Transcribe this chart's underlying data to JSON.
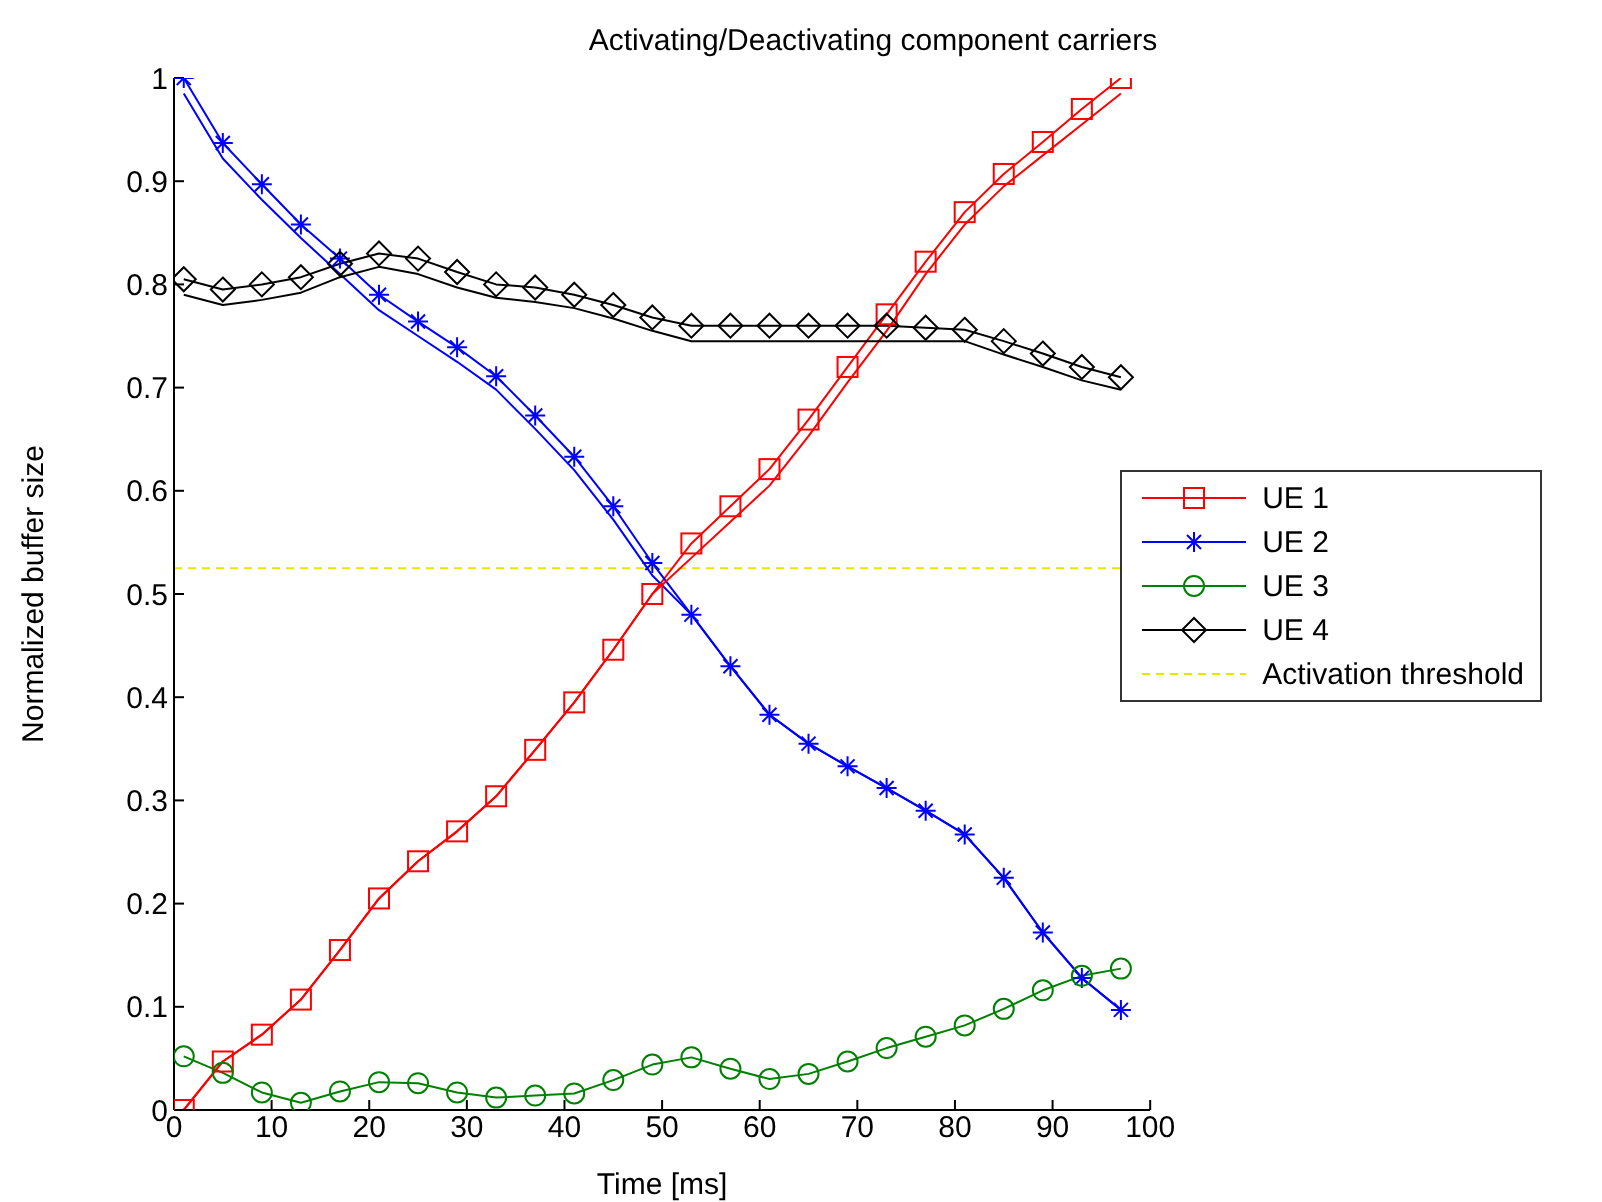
{
  "chart_data": {
    "type": "line",
    "title": "Activating/Deactivating component carriers",
    "xlabel": "Time [ms]",
    "ylabel": "Normalized buffer size",
    "x": [
      1,
      5,
      9,
      13,
      17,
      21,
      25,
      29,
      33,
      37,
      41,
      45,
      49,
      53,
      57,
      61,
      65,
      69,
      73,
      77,
      81,
      85,
      89,
      93,
      97
    ],
    "xlim": [
      0,
      100
    ],
    "xticks": [
      0,
      10,
      20,
      30,
      40,
      50,
      60,
      70,
      80,
      90,
      100
    ],
    "ylim": [
      0,
      1
    ],
    "yticks": [
      0,
      0.1,
      0.2,
      0.3,
      0.4,
      0.5,
      0.6,
      0.7,
      0.8,
      0.9,
      1
    ],
    "grid": false,
    "legend": "right",
    "line_style": "solid",
    "series": [
      {
        "name": "UE 1",
        "color": "#ff0000",
        "marker": "square",
        "values": [
          0,
          0.047,
          0.073,
          0.107,
          0.155,
          0.205,
          0.241,
          0.27,
          0.304,
          0.349,
          0.395,
          0.446,
          0.5,
          0.549,
          0.585,
          0.621,
          0.669,
          0.72,
          0.771,
          0.822,
          0.87,
          0.907,
          0.938,
          0.97,
          1.0
        ]
      },
      {
        "name": "UE 2",
        "color": "#0000ff",
        "marker": "cross",
        "values": [
          1.0,
          0.937,
          0.897,
          0.858,
          0.825,
          0.79,
          0.764,
          0.739,
          0.711,
          0.673,
          0.633,
          0.585,
          0.53,
          0.48,
          0.43,
          0.383,
          0.355,
          0.333,
          0.312,
          0.29,
          0.267,
          0.225,
          0.172,
          0.128,
          0.097
        ]
      },
      {
        "name": "UE 3",
        "color": "#008000",
        "marker": "circle",
        "values": [
          0.052,
          0.036,
          0.017,
          0.007,
          0.018,
          0.027,
          0.026,
          0.017,
          0.012,
          0.014,
          0.016,
          0.029,
          0.044,
          0.051,
          0.04,
          0.03,
          0.035,
          0.047,
          0.06,
          0.071,
          0.082,
          0.098,
          0.116,
          0.13,
          0.137
        ]
      },
      {
        "name": "UE 4",
        "color": "#000000",
        "marker": "diamond",
        "values": [
          0.805,
          0.795,
          0.8,
          0.807,
          0.82,
          0.83,
          0.825,
          0.812,
          0.8,
          0.797,
          0.79,
          0.78,
          0.768,
          0.76,
          0.76,
          0.76,
          0.76,
          0.76,
          0.76,
          0.758,
          0.756,
          0.745,
          0.733,
          0.72,
          0.71
        ]
      },
      {
        "color": "#ff0000",
        "marker": "none",
        "values": [
          0,
          0.047,
          0.073,
          0.107,
          0.155,
          0.205,
          0.241,
          0.27,
          0.304,
          0.349,
          0.395,
          0.446,
          0.5,
          0.535,
          0.57,
          0.605,
          0.653,
          0.705,
          0.755,
          0.81,
          0.858,
          0.895,
          0.925,
          0.955,
          0.985
        ]
      },
      {
        "color": "#0000ff",
        "marker": "none",
        "values": [
          0.985,
          0.922,
          0.882,
          0.845,
          0.81,
          0.775,
          0.75,
          0.725,
          0.698,
          0.66,
          0.62,
          0.572,
          0.518,
          0.48,
          0.43,
          0.383,
          0.355,
          0.333,
          0.312,
          0.29,
          0.267,
          0.225,
          0.172,
          0.128,
          0.097
        ]
      },
      {
        "color": "#000000",
        "marker": "none",
        "values": [
          0.79,
          0.78,
          0.785,
          0.792,
          0.807,
          0.817,
          0.81,
          0.797,
          0.787,
          0.783,
          0.777,
          0.767,
          0.755,
          0.745,
          0.745,
          0.745,
          0.745,
          0.745,
          0.745,
          0.745,
          0.745,
          0.732,
          0.72,
          0.707,
          0.698
        ]
      }
    ],
    "ref_lines": [
      {
        "axis": "y",
        "value": 0.525,
        "label": "Activation threshold",
        "color": "#e6e600",
        "line_style": "dashed"
      }
    ]
  }
}
